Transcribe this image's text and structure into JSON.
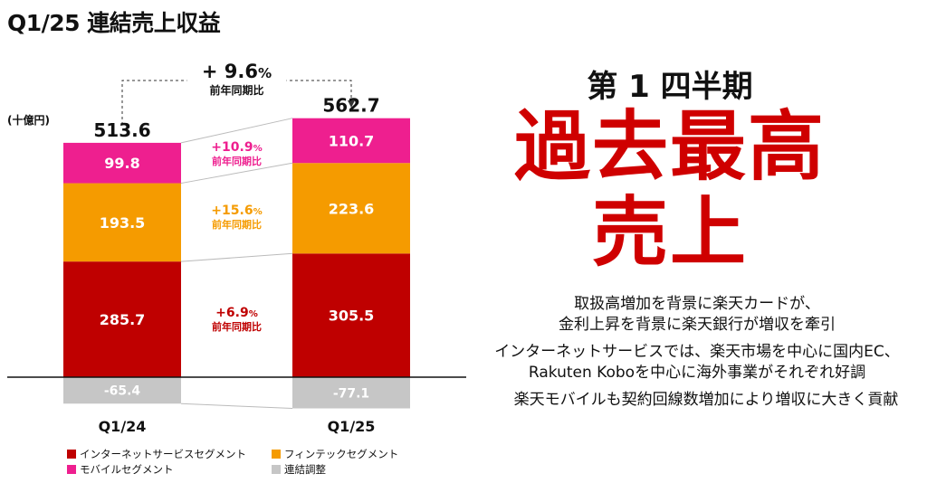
{
  "title": "Q1/25 連結売上収益",
  "unit": "(十億円)",
  "colors": {
    "internet": "#bf0000",
    "fintech": "#f59b00",
    "mobile": "#ee1f8f",
    "adjust": "#c6c6c6"
  },
  "chart_data": {
    "type": "bar",
    "stacked": true,
    "categories": [
      "Q1/24",
      "Q1/25"
    ],
    "series": [
      {
        "name": "インターネットサービスセグメント",
        "color": "#bf0000",
        "values": [
          285.7,
          305.5
        ],
        "yoy": "+6.9",
        "yoy_color": "#bf0000"
      },
      {
        "name": "フィンテックセグメント",
        "color": "#f59b00",
        "values": [
          193.5,
          223.6
        ],
        "yoy": "+15.6",
        "yoy_color": "#f59b00"
      },
      {
        "name": "モバイルセグメント",
        "color": "#ee1f8f",
        "values": [
          99.8,
          110.7
        ],
        "yoy": "+10.9",
        "yoy_color": "#ee1f8f"
      },
      {
        "name": "連結調整",
        "color": "#c6c6c6",
        "values": [
          -65.4,
          -77.1
        ]
      }
    ],
    "totals": [
      "513.6",
      "562.7"
    ],
    "total_growth": "+ 9.6",
    "percent_sign": "%",
    "growth_caption": "前年同期比",
    "legend_position": "bottom"
  },
  "right_panel": {
    "quarter_label": "第 1 四半期",
    "headline_1": "過去最高",
    "headline_2": "売上",
    "notes": [
      [
        "取扱高増加を背景に楽天カードが、",
        "金利上昇を背景に楽天銀行が増収を牽引"
      ],
      [
        "インターネットサービスでは、楽天市場を中心に国内EC、",
        "Rakuten Koboを中心に海外事業がそれぞれ好調"
      ],
      [
        "楽天モバイルも契約回線数増加により増収に大きく貢献"
      ]
    ]
  }
}
